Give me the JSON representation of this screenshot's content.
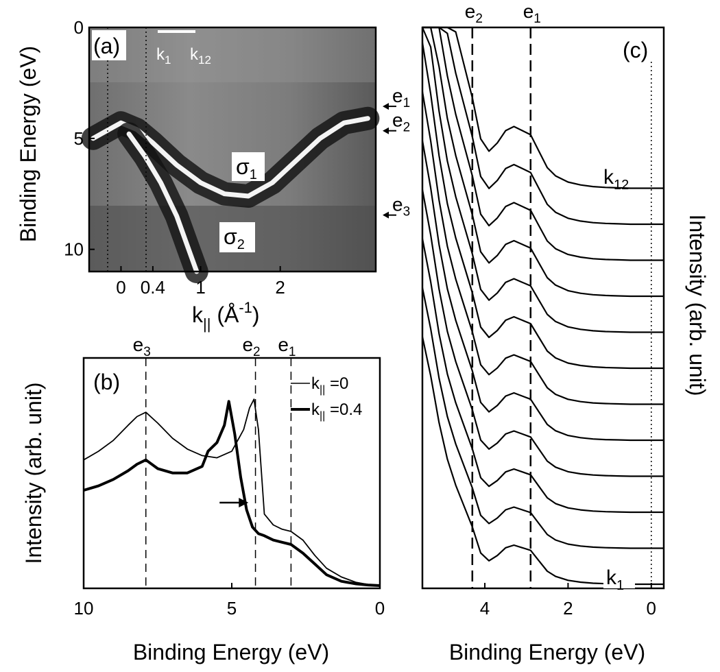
{
  "chart_data": [
    {
      "panel": "(a)",
      "type": "heatmap",
      "xlabel_main": "k",
      "xlabel_sub": "||",
      "xlabel_unit_open": " (Å",
      "xlabel_unit_sup": "-1",
      "xlabel_unit_close": ")",
      "ylabel": "Binding Energy (eV)",
      "xlim": [
        -0.4,
        3.2
      ],
      "ylim": [
        11,
        0
      ],
      "x_ticks": [
        "0",
        "0.4",
        "1",
        "2"
      ],
      "y_ticks": [
        "0",
        "5",
        "10"
      ],
      "k_range_labels": [
        "k",
        "1",
        "k",
        "12"
      ],
      "band_labels": [
        "σ",
        "1",
        "σ",
        "2"
      ],
      "edge_markers": [
        {
          "label": "e",
          "sub": "1",
          "energy": 3.0
        },
        {
          "label": "e",
          "sub": "2",
          "energy": 4.1
        },
        {
          "label": "e",
          "sub": "3",
          "energy": 7.9
        }
      ],
      "bands": [
        {
          "name": "σ1",
          "points": [
            [
              -0.35,
              5.0
            ],
            [
              -0.1,
              4.5
            ],
            [
              0.0,
              4.3
            ],
            [
              0.2,
              4.6
            ],
            [
              0.4,
              5.2
            ],
            [
              0.7,
              6.2
            ],
            [
              1.0,
              7.0
            ],
            [
              1.3,
              7.5
            ],
            [
              1.6,
              7.6
            ],
            [
              1.9,
              7.0
            ],
            [
              2.2,
              6.0
            ],
            [
              2.5,
              5.0
            ],
            [
              2.8,
              4.3
            ],
            [
              3.1,
              4.1
            ]
          ]
        },
        {
          "name": "σ2",
          "points": [
            [
              0.1,
              4.8
            ],
            [
              0.3,
              5.8
            ],
            [
              0.5,
              7.0
            ],
            [
              0.7,
              8.5
            ],
            [
              0.85,
              10.0
            ],
            [
              0.95,
              11.0
            ]
          ]
        }
      ]
    },
    {
      "panel": "(b)",
      "type": "line",
      "xlabel": "Binding Energy (eV)",
      "ylabel": "Intensity (arb. unit)",
      "xlim": [
        10,
        0
      ],
      "x_ticks": [
        "10",
        "5",
        "0"
      ],
      "edge_labels": [
        {
          "label": "e",
          "sub": "3",
          "energy": 7.9
        },
        {
          "label": "e",
          "sub": "2",
          "energy": 4.2
        },
        {
          "label": "e",
          "sub": "1",
          "energy": 3.0
        }
      ],
      "legend": [
        {
          "pre": "k",
          "sub": "||",
          "post": " =0"
        },
        {
          "pre": "k",
          "sub": "||",
          "post": " =0.4"
        }
      ],
      "arrow_energy": 4.3,
      "series": [
        {
          "x": [
            10,
            9.5,
            9,
            8.5,
            8.2,
            7.9,
            7.5,
            7,
            6.5,
            6,
            5.5,
            5.0,
            4.6,
            4.4,
            4.25,
            4.1,
            3.9,
            3.6,
            3.3,
            3.0,
            2.6,
            2.2,
            1.8,
            1.3,
            0.8,
            0.4,
            0
          ],
          "y": [
            0.58,
            0.62,
            0.67,
            0.74,
            0.78,
            0.8,
            0.75,
            0.68,
            0.63,
            0.6,
            0.59,
            0.62,
            0.72,
            0.82,
            0.86,
            0.72,
            0.33,
            0.28,
            0.26,
            0.25,
            0.21,
            0.14,
            0.08,
            0.04,
            0.015,
            0.005,
            0.0
          ]
        },
        {
          "x": [
            10,
            9.5,
            9,
            8.5,
            8.2,
            7.9,
            7.5,
            7,
            6.5,
            6,
            5.8,
            5.5,
            5.25,
            5.1,
            4.9,
            4.7,
            4.5,
            4.3,
            4.1,
            3.9,
            3.6,
            3.3,
            3.0,
            2.6,
            2.2,
            1.8,
            1.3,
            0.8,
            0.4,
            0
          ],
          "y": [
            0.44,
            0.46,
            0.49,
            0.53,
            0.56,
            0.58,
            0.54,
            0.52,
            0.52,
            0.55,
            0.62,
            0.66,
            0.74,
            0.85,
            0.7,
            0.5,
            0.35,
            0.27,
            0.24,
            0.23,
            0.21,
            0.2,
            0.19,
            0.15,
            0.1,
            0.05,
            0.02,
            0.008,
            0.003,
            0.0
          ]
        }
      ]
    },
    {
      "panel": "(c)",
      "type": "line",
      "xlabel": "Binding Energy (eV)",
      "ylabel": "Intensity (arb. unit)",
      "xlim": [
        5.5,
        -0.3
      ],
      "x_ticks": [
        "4",
        "2",
        "0"
      ],
      "edge_labels": [
        {
          "label": "e",
          "sub": "2",
          "energy": 4.3
        },
        {
          "label": "e",
          "sub": "1",
          "energy": 2.9
        }
      ],
      "curve_labels": [
        {
          "pre": "k",
          "sub": "12"
        },
        {
          "pre": "k",
          "sub": "1"
        }
      ],
      "n_curves": 12,
      "shape_x": [
        5.5,
        5.3,
        5.1,
        4.9,
        4.7,
        4.5,
        4.3,
        4.1,
        3.9,
        3.7,
        3.5,
        3.3,
        3.1,
        2.9,
        2.7,
        2.5,
        2.3,
        2.0,
        1.7,
        1.4,
        1.1,
        0.8,
        0.5,
        0.2,
        0.0,
        -0.3
      ],
      "shape_y": [
        0.95,
        0.8,
        0.62,
        0.48,
        0.38,
        0.3,
        0.22,
        0.12,
        0.09,
        0.11,
        0.14,
        0.15,
        0.14,
        0.13,
        0.09,
        0.05,
        0.03,
        0.015,
        0.008,
        0.004,
        0.002,
        0.001,
        0.0,
        0.0,
        0.0,
        0.0
      ]
    }
  ]
}
